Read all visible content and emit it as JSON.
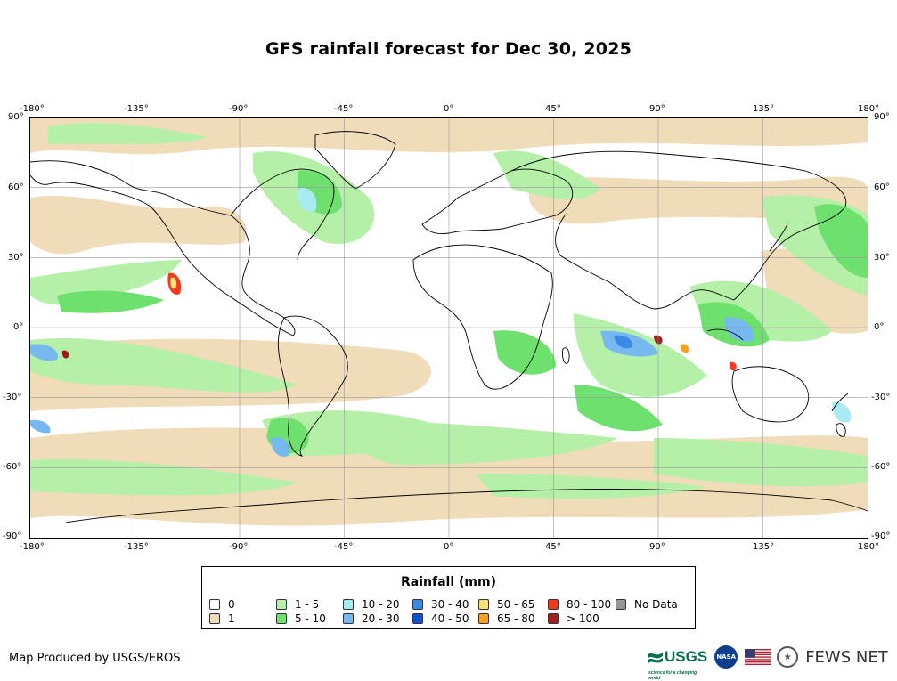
{
  "title": "GFS rainfall forecast for Dec 30, 2025",
  "axes": {
    "top_lon": [
      "-180°",
      "-135°",
      "-90°",
      "-45°",
      "0°",
      "45°",
      "90°",
      "135°",
      "180°"
    ],
    "bottom_lon": [
      "-180°",
      "-135°",
      "-90°",
      "-45°",
      "0°",
      "45°",
      "90°",
      "135°",
      "180°"
    ],
    "left_lat": [
      "90°",
      "60°",
      "30°",
      "0°",
      "-30°",
      "-60°",
      "-90°"
    ],
    "right_lat": [
      "90°",
      "60°",
      "30°",
      "0°",
      "-30°",
      "-60°",
      "-90°"
    ]
  },
  "legend": {
    "title": "Rainfall (mm)",
    "items": [
      {
        "label": "0",
        "color": "#ffffff"
      },
      {
        "label": "1",
        "color": "#f0dcb8"
      },
      {
        "label": "1 - 5",
        "color": "#b4f0a8"
      },
      {
        "label": "5 - 10",
        "color": "#6ee06e"
      },
      {
        "label": "10 - 20",
        "color": "#a8ecf2"
      },
      {
        "label": "20 - 30",
        "color": "#78b8f0"
      },
      {
        "label": "30 - 40",
        "color": "#3c8ae8"
      },
      {
        "label": "40 - 50",
        "color": "#1450d2"
      },
      {
        "label": "50 - 65",
        "color": "#f8e078"
      },
      {
        "label": "65 - 80",
        "color": "#f8a020"
      },
      {
        "label": "80 - 100",
        "color": "#f03c1e"
      },
      {
        "label": "> 100",
        "color": "#a01e1e"
      },
      {
        "label": "No Data",
        "color": "#969696"
      }
    ]
  },
  "footer": {
    "credit": "Map Produced by USGS/EROS",
    "usgs": "USGS",
    "usgs_tagline": "science for a changing world",
    "nasa": "NASA",
    "fews": "FEWS NET"
  }
}
